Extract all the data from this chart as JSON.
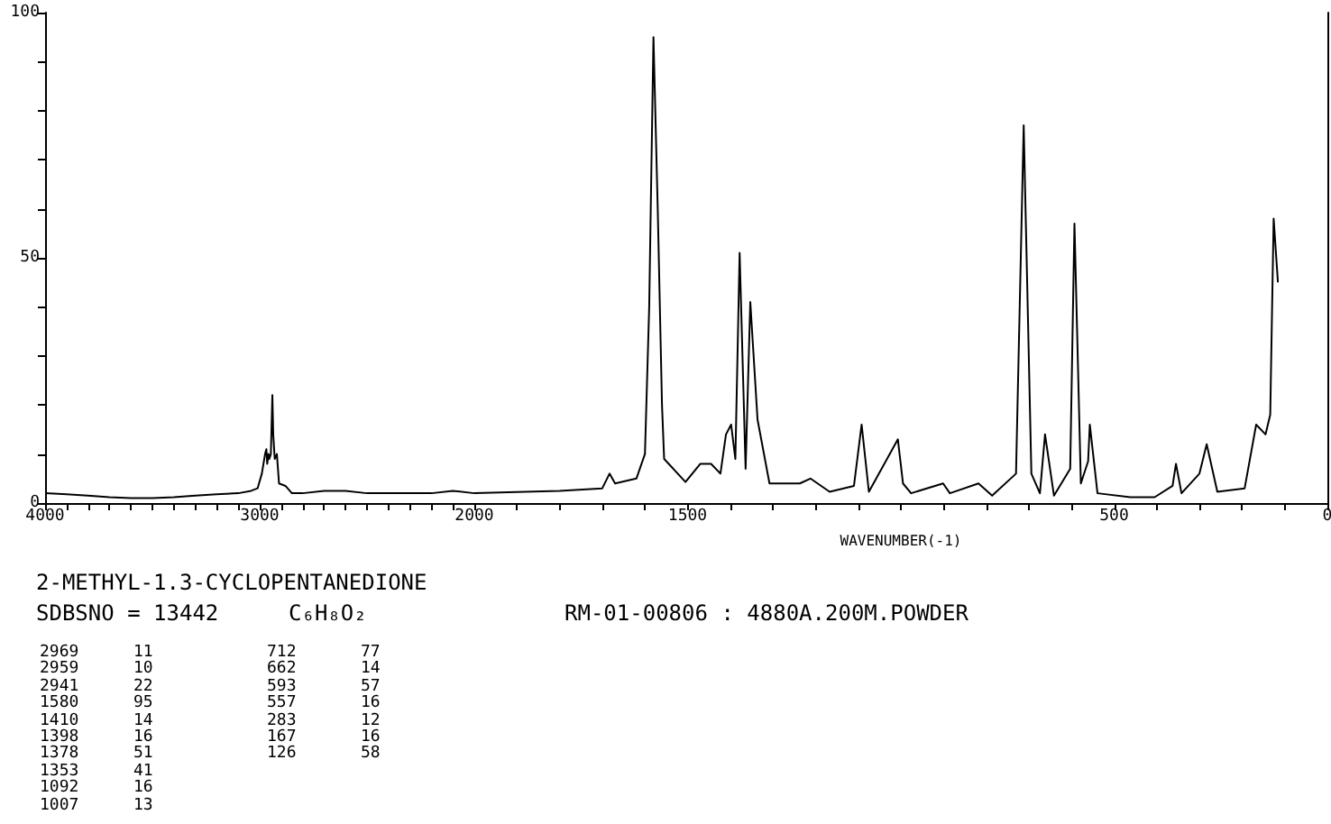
{
  "chart_data": [
    {
      "type": "line",
      "title": "2-METHYL-1.3-CYCLOPENTANEDIONE",
      "color": "#000000",
      "marker": "none",
      "line_style": "solid",
      "x": [
        4000,
        3900,
        3800,
        3700,
        3600,
        3500,
        3400,
        3300,
        3200,
        3100,
        3040,
        3010,
        2990,
        2975,
        2969,
        2965,
        2959,
        2955,
        2948,
        2941,
        2937,
        2930,
        2920,
        2910,
        2880,
        2850,
        2800,
        2700,
        2600,
        2500,
        2400,
        2300,
        2200,
        2100,
        2000
      ],
      "values": [
        2,
        1.8,
        1.5,
        1.2,
        1,
        1,
        1.2,
        1.5,
        1.8,
        2,
        2.5,
        3,
        6,
        10,
        11,
        8,
        10,
        9,
        10,
        22,
        14,
        9,
        10,
        4,
        3.5,
        2,
        2,
        2.5,
        2.5,
        2,
        2,
        2,
        2,
        2.5,
        2
      ],
      "xlim": [
        4000,
        2000
      ],
      "ylim": [
        0,
        100
      ],
      "xticks": [
        4000,
        {
          "value": 3900,
          "label": null
        },
        {
          "value": 3800,
          "label": null
        },
        {
          "value": 3700,
          "label": null
        },
        {
          "value": 3600,
          "label": null
        },
        {
          "value": 3500,
          "label": null
        },
        {
          "value": 3400,
          "label": null
        },
        {
          "value": 3300,
          "label": null
        },
        {
          "value": 3200,
          "label": null
        },
        {
          "value": 3100,
          "label": null
        },
        3000,
        {
          "value": 2900,
          "label": null
        },
        {
          "value": 2800,
          "label": null
        },
        {
          "value": 2700,
          "label": null
        },
        {
          "value": 2600,
          "label": null
        },
        {
          "value": 2500,
          "label": null
        },
        {
          "value": 2400,
          "label": null
        },
        {
          "value": 2300,
          "label": null
        },
        {
          "value": 2200,
          "label": null
        },
        {
          "value": 2100,
          "label": null
        },
        2000
      ],
      "yticks": [
        0,
        {
          "value": 10,
          "label": null
        },
        {
          "value": 20,
          "label": null
        },
        {
          "value": 30,
          "label": null
        },
        {
          "value": 40,
          "label": null
        },
        50,
        {
          "value": 60,
          "label": null
        },
        {
          "value": 70,
          "label": null
        },
        {
          "value": 80,
          "label": null
        },
        {
          "value": 90,
          "label": null
        },
        100
      ],
      "annotations": [
        "SDBSNO = 13442",
        "C₆H₈O₂",
        "RM-01-00806 : 4880A.200M.POWDER",
        "2969 11",
        "2959 10",
        "2941 22",
        "1580 95",
        "1410 14",
        "1398 16",
        "1378 51",
        "1353 41",
        "1092 16",
        "1007 13",
        "712 77",
        "662 14",
        "593 57",
        "557 16",
        "283 12",
        "167 16",
        "126 58"
      ]
    },
    {
      "type": "line",
      "xlabel": "WAVENUMBER(-1)",
      "color": "#000000",
      "marker": "none",
      "line_style": "solid",
      "tick_labels": "x",
      "x": [
        2000,
        1800,
        1700,
        1683,
        1670,
        1620,
        1600,
        1590,
        1580,
        1570,
        1560,
        1555,
        1505,
        1470,
        1445,
        1423,
        1410,
        1398,
        1388,
        1378,
        1364,
        1353,
        1336,
        1308,
        1237,
        1212,
        1167,
        1110,
        1092,
        1075,
        1007,
        995,
        976,
        901,
        885,
        818,
        786,
        730,
        712,
        694,
        674,
        662,
        641,
        603,
        593,
        578,
        561,
        557,
        539,
        462,
        405,
        363,
        355,
        342,
        300,
        283,
        258,
        194,
        167,
        145,
        134,
        126,
        116
      ],
      "values": [
        2,
        2.5,
        3,
        6,
        4,
        5,
        10,
        40,
        95,
        60,
        20,
        9,
        4.3,
        8,
        8,
        6,
        14,
        16,
        9,
        51,
        7,
        41,
        17,
        4,
        4,
        5,
        2.3,
        3.5,
        16,
        2.3,
        13,
        4,
        2,
        4,
        2,
        4,
        1.5,
        6,
        77,
        6,
        2,
        14,
        1.5,
        7,
        57,
        4,
        8.5,
        16,
        2,
        1.2,
        1.2,
        3.5,
        8,
        2,
        6,
        12,
        2.3,
        3,
        16,
        14,
        18,
        58,
        45
      ],
      "xlim": [
        2000,
        0
      ],
      "ylim": [
        0,
        100
      ],
      "xticks": [
        {
          "value": 1900,
          "label": null
        },
        {
          "value": 1800,
          "label": null
        },
        {
          "value": 1700,
          "label": null
        },
        {
          "value": 1600,
          "label": null
        },
        1500,
        {
          "value": 1400,
          "label": null
        },
        {
          "value": 1300,
          "label": null
        },
        {
          "value": 1200,
          "label": null
        },
        {
          "value": 1100,
          "label": null
        },
        {
          "value": 1000,
          "label": null
        },
        {
          "value": 900,
          "label": null
        },
        {
          "value": 800,
          "label": null
        },
        {
          "value": 700,
          "label": null
        },
        {
          "value": 600,
          "label": null
        },
        500,
        {
          "value": 400,
          "label": null
        },
        {
          "value": 300,
          "label": null
        },
        {
          "value": 200,
          "label": null
        },
        {
          "value": 100,
          "label": null
        },
        0
      ]
    }
  ]
}
